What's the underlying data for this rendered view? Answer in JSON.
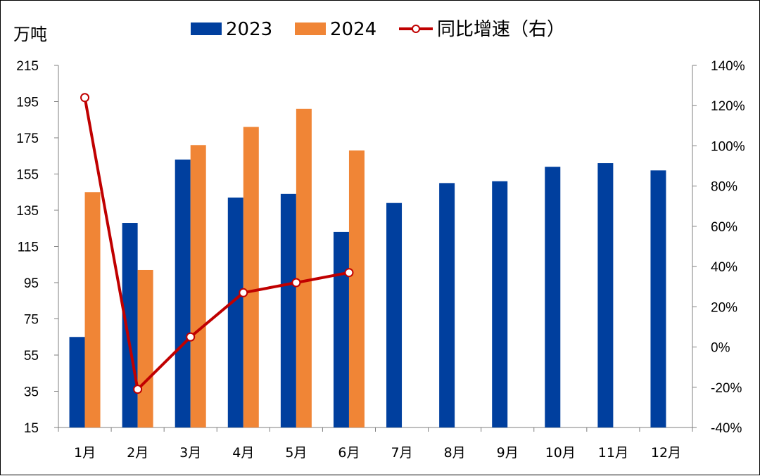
{
  "chart_data": {
    "type": "bar",
    "y_unit_label": "万吨",
    "categories": [
      "1月",
      "2月",
      "3月",
      "4月",
      "5月",
      "6月",
      "7月",
      "8月",
      "9月",
      "10月",
      "11月",
      "12月"
    ],
    "series": [
      {
        "name": "2023",
        "type": "bar",
        "axis": "left",
        "color": "#003F9E",
        "values": [
          65,
          128,
          163,
          142,
          144,
          123,
          139,
          150,
          151,
          159,
          161,
          157
        ]
      },
      {
        "name": "2024",
        "type": "bar",
        "axis": "left",
        "color": "#F08536",
        "values": [
          145,
          102,
          171,
          181,
          191,
          168,
          null,
          null,
          null,
          null,
          null,
          null
        ]
      },
      {
        "name": "同比增速（右）",
        "type": "line",
        "axis": "right",
        "color": "#C00000",
        "values": [
          124,
          -21,
          5,
          27,
          32,
          37,
          null,
          null,
          null,
          null,
          null,
          null
        ]
      }
    ],
    "y_left": {
      "ylim": [
        15,
        215
      ],
      "ticks": [
        "215",
        "195",
        "175",
        "155",
        "135",
        "115",
        "95",
        "75",
        "55",
        "35",
        "15"
      ]
    },
    "y_right": {
      "ylim": [
        -40,
        140
      ],
      "ticks": [
        "140%",
        "120%",
        "100%",
        "80%",
        "60%",
        "40%",
        "20%",
        "0%",
        "-20%",
        "-40%"
      ]
    },
    "legend_position": "top-center",
    "grid": false
  }
}
